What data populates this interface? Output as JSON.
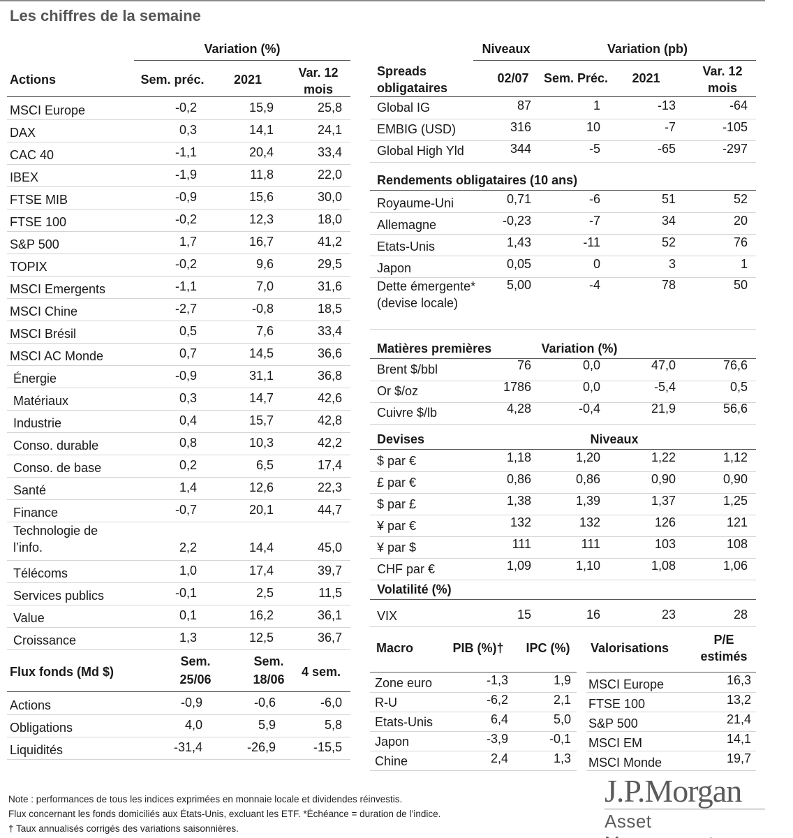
{
  "title": "Les chiffres de la semaine",
  "actions": {
    "group_header": "Variation (%)",
    "col_label": "Actions",
    "columns": [
      "Sem. préc.",
      "2021",
      "Var. 12 mois"
    ],
    "rows": [
      {
        "name": "MSCI Europe",
        "v": [
          "-0,2",
          "15,9",
          "25,8"
        ]
      },
      {
        "name": "DAX",
        "v": [
          "0,3",
          "14,1",
          "24,1"
        ]
      },
      {
        "name": "CAC 40",
        "v": [
          "-1,1",
          "20,4",
          "33,4"
        ]
      },
      {
        "name": "IBEX",
        "v": [
          "-1,9",
          "11,8",
          "22,0"
        ]
      },
      {
        "name": "FTSE MIB",
        "v": [
          "-0,9",
          "15,6",
          "30,0"
        ]
      },
      {
        "name": "FTSE 100",
        "v": [
          "-0,2",
          "12,3",
          "18,0"
        ]
      },
      {
        "name": "S&P 500",
        "v": [
          "1,7",
          "16,7",
          "41,2"
        ]
      },
      {
        "name": "TOPIX",
        "v": [
          "-0,2",
          "9,6",
          "29,5"
        ]
      },
      {
        "name": "MSCI Emergents",
        "v": [
          "-1,1",
          "7,0",
          "31,6"
        ]
      },
      {
        "name": "MSCI Chine",
        "v": [
          "-2,7",
          "-0,8",
          "18,5"
        ]
      },
      {
        "name": "MSCI Brésil",
        "v": [
          "0,5",
          "7,6",
          "33,4"
        ]
      },
      {
        "name": "MSCI AC Monde",
        "v": [
          "0,7",
          "14,5",
          "36,6"
        ]
      },
      {
        "name": "Énergie",
        "v": [
          "-0,9",
          "31,1",
          "36,8"
        ]
      },
      {
        "name": "Matériaux",
        "v": [
          "0,3",
          "14,7",
          "42,6"
        ]
      },
      {
        "name": "Industrie",
        "v": [
          "0,4",
          "15,7",
          "42,8"
        ]
      },
      {
        "name": "Conso. durable",
        "v": [
          "0,8",
          "10,3",
          "42,2"
        ]
      },
      {
        "name": "Conso. de base",
        "v": [
          "0,2",
          "6,5",
          "17,4"
        ]
      },
      {
        "name": "Santé",
        "v": [
          "1,4",
          "12,6",
          "22,3"
        ]
      },
      {
        "name": "Finance",
        "v": [
          "-0,7",
          "20,1",
          "44,7"
        ]
      },
      {
        "name": "Technologie de l’info.",
        "v": [
          "2,2",
          "14,4",
          "45,0"
        ]
      },
      {
        "name": "Télécoms",
        "v": [
          "1,0",
          "17,4",
          "39,7"
        ]
      },
      {
        "name": "Services publics",
        "v": [
          "-0,1",
          "2,5",
          "11,5"
        ]
      },
      {
        "name": "Value",
        "v": [
          "0,1",
          "16,2",
          "36,1"
        ]
      },
      {
        "name": "Croissance",
        "v": [
          "1,3",
          "12,5",
          "36,7"
        ]
      }
    ]
  },
  "flux": {
    "col_label": "Flux fonds (Md $)",
    "columns": [
      "Sem. 25/06",
      "Sem. 18/06",
      "4 sem."
    ],
    "rows": [
      {
        "name": "Actions",
        "v": [
          "-0,9",
          "-0,6",
          "-6,0"
        ]
      },
      {
        "name": "Obligations",
        "v": [
          "4,0",
          "5,9",
          "5,8"
        ]
      },
      {
        "name": "Liquidités",
        "v": [
          "-31,4",
          "-26,9",
          "-15,5"
        ]
      }
    ]
  },
  "spreads": {
    "niveaux_header": "Niveaux",
    "variation_header": "Variation (pb)",
    "col_label": "Spreads obligataires",
    "columns": [
      "02/07",
      "Sem. Préc.",
      "2021",
      "Var. 12 mois"
    ],
    "rows": [
      {
        "name": "Global IG",
        "v": [
          "87",
          "1",
          "-13",
          "-64"
        ]
      },
      {
        "name": "EMBIG (USD)",
        "v": [
          "316",
          "10",
          "-7",
          "-105"
        ]
      },
      {
        "name": "Global High Yld",
        "v": [
          "344",
          "-5",
          "-65",
          "-297"
        ]
      }
    ]
  },
  "rendements": {
    "label": "Rendements obligataires (10 ans)",
    "rows": [
      {
        "name": "Royaume-Uni",
        "v": [
          "0,71",
          "-6",
          "51",
          "52"
        ]
      },
      {
        "name": "Allemagne",
        "v": [
          "-0,23",
          "-7",
          "34",
          "20"
        ]
      },
      {
        "name": "Etats-Unis",
        "v": [
          "1,43",
          "-11",
          "52",
          "76"
        ]
      },
      {
        "name": "Japon",
        "v": [
          "0,05",
          "0",
          "3",
          "1"
        ]
      },
      {
        "name": "Dette émergente* (devise locale)",
        "v": [
          "5,00",
          "-4",
          "78",
          "50"
        ]
      }
    ]
  },
  "matieres": {
    "label": "Matières premières",
    "variation_header": "Variation (%)",
    "rows": [
      {
        "name": "Brent $/bbl",
        "v": [
          "76",
          "0,0",
          "47,0",
          "76,6"
        ]
      },
      {
        "name": "Or $/oz",
        "v": [
          "1786",
          "0,0",
          "-5,4",
          "0,5"
        ]
      },
      {
        "name": "Cuivre $/lb",
        "v": [
          "4,28",
          "-0,4",
          "21,9",
          "56,6"
        ]
      }
    ]
  },
  "devises": {
    "label": "Devises",
    "niveaux_header": "Niveaux",
    "rows": [
      {
        "name": "$ par €",
        "v": [
          "1,18",
          "1,20",
          "1,22",
          "1,12"
        ]
      },
      {
        "name": "£ par €",
        "v": [
          "0,86",
          "0,86",
          "0,90",
          "0,90"
        ]
      },
      {
        "name": "$ par £",
        "v": [
          "1,38",
          "1,39",
          "1,37",
          "1,25"
        ]
      },
      {
        "name": "¥ par €",
        "v": [
          "132",
          "132",
          "126",
          "121"
        ]
      },
      {
        "name": "¥ par $",
        "v": [
          "111",
          "111",
          "103",
          "108"
        ]
      },
      {
        "name": "CHF par €",
        "v": [
          "1,09",
          "1,10",
          "1,08",
          "1,06"
        ]
      }
    ]
  },
  "volatilite": {
    "label": "Volatilité (%)",
    "rows": [
      {
        "name": "VIX",
        "v": [
          "15",
          "16",
          "23",
          "28"
        ]
      }
    ]
  },
  "macro": {
    "label": "Macro",
    "columns": [
      "PIB (%)†",
      "IPC (%)"
    ],
    "rows": [
      {
        "name": "Zone euro",
        "v": [
          "-1,3",
          "1,9"
        ]
      },
      {
        "name": "R-U",
        "v": [
          "-6,2",
          "2,1"
        ]
      },
      {
        "name": "Etats-Unis",
        "v": [
          "6,4",
          "5,0"
        ]
      },
      {
        "name": "Japon",
        "v": [
          "-3,9",
          "-0,1"
        ]
      },
      {
        "name": "Chine",
        "v": [
          "2,4",
          "1,3"
        ]
      }
    ]
  },
  "valorisations": {
    "label": "Valorisations",
    "column": "P/E estimés",
    "rows": [
      {
        "name": "MSCI Europe",
        "v": "16,3"
      },
      {
        "name": "FTSE 100",
        "v": "13,2"
      },
      {
        "name": "S&P 500",
        "v": "21,4"
      },
      {
        "name": "MSCI EM",
        "v": "14,1"
      },
      {
        "name": "MSCI Monde",
        "v": "19,7"
      }
    ]
  },
  "footnotes": [
    "Note : performances de tous les indices exprimées en monnaie locale et dividendes réinvestis.",
    "Flux concernant les fonds domiciliés aux États-Unis, excluant les ETF. *Échéance = duration de l’indice.",
    "† Taux annualisés corrigés des variations saisonnières."
  ],
  "logo": {
    "main": "J.P.Morgan",
    "sub": "Asset Management"
  }
}
